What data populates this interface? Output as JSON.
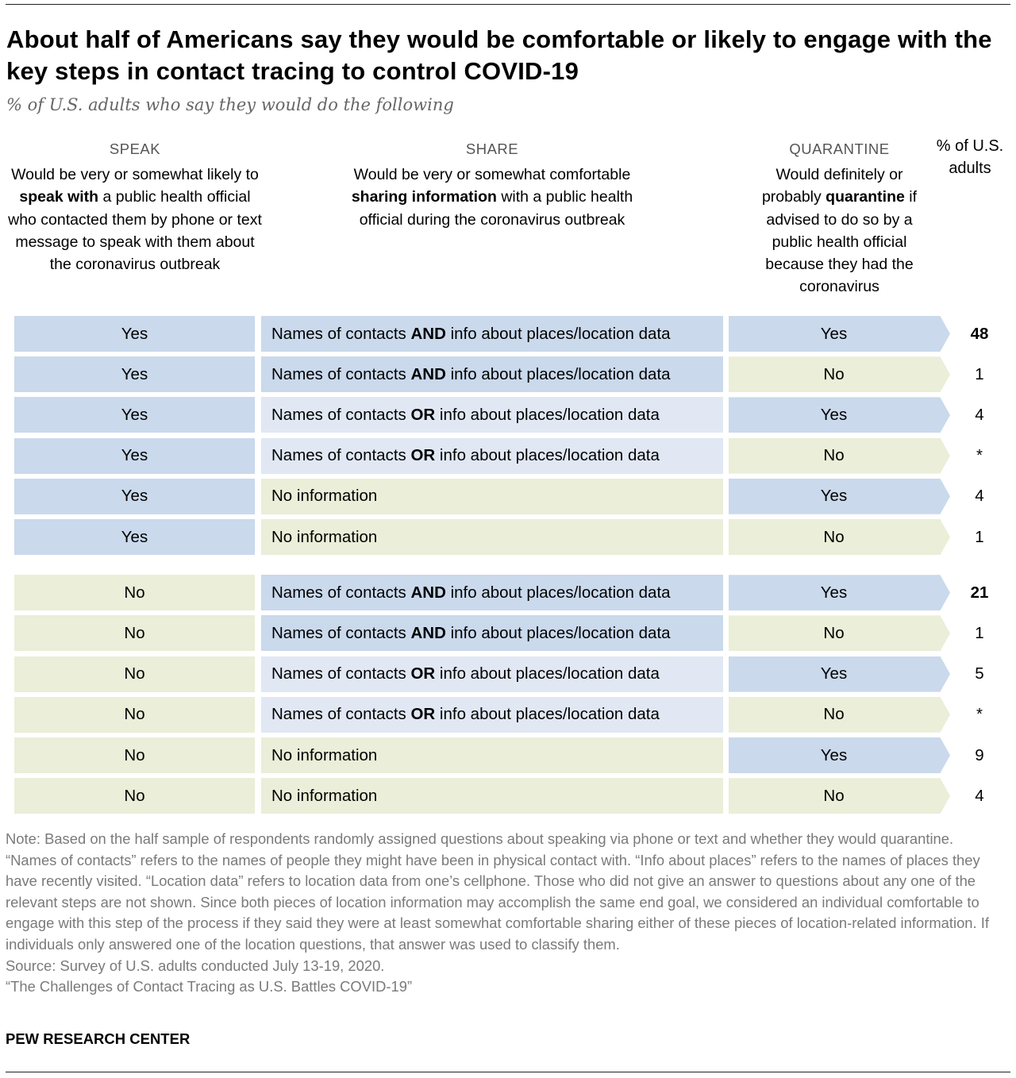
{
  "title": "About half of Americans say they would be comfortable or likely to engage with the key steps in contact tracing to control COVID-19",
  "subtitle": "% of U.S. adults who say they would do the following",
  "columns": {
    "speak": {
      "cap": "SPEAK",
      "pre": "Would be very or somewhat likely to ",
      "bold": "speak with",
      "post": " a public health official who contacted them by phone or text message to speak with them about the coronavirus outbreak"
    },
    "share": {
      "cap": "SHARE",
      "pre": "Would be very or somewhat comfortable ",
      "bold": "sharing information",
      "post": " with a public health official during the coronavirus outbreak"
    },
    "quarantine": {
      "cap": "QUARANTINE",
      "pre": "Would definitely or probably ",
      "bold": "quarantine",
      "post": " if advised to do so by a public health official because they had the coronavirus"
    },
    "pct": "% of U.S. adults"
  },
  "colors": {
    "yes": "#cad9ec",
    "no": "#ebeed8",
    "or": "#e1e8f4"
  },
  "chart_data": {
    "type": "table",
    "rows": [
      {
        "speak": "Yes",
        "share": {
          "type": "and",
          "pre": "Names of contacts ",
          "bold": "AND",
          "post": " info about places/location data"
        },
        "quarantine": "Yes",
        "value": "48",
        "bold": true
      },
      {
        "speak": "Yes",
        "share": {
          "type": "and",
          "pre": "Names of contacts ",
          "bold": "AND",
          "post": " info about places/location data"
        },
        "quarantine": "No",
        "value": "1"
      },
      {
        "speak": "Yes",
        "share": {
          "type": "or",
          "pre": "Names of contacts ",
          "bold": "OR",
          "post": " info about places/location data"
        },
        "quarantine": "Yes",
        "value": "4"
      },
      {
        "speak": "Yes",
        "share": {
          "type": "or",
          "pre": "Names of contacts ",
          "bold": "OR",
          "post": " info about places/location data"
        },
        "quarantine": "No",
        "value": "*"
      },
      {
        "speak": "Yes",
        "share": {
          "type": "none",
          "pre": "No information",
          "bold": "",
          "post": ""
        },
        "quarantine": "Yes",
        "value": "4"
      },
      {
        "speak": "Yes",
        "share": {
          "type": "none",
          "pre": "No information",
          "bold": "",
          "post": ""
        },
        "quarantine": "No",
        "value": "1"
      },
      {
        "speak": "No",
        "share": {
          "type": "and",
          "pre": "Names of contacts ",
          "bold": "AND",
          "post": " info about places/location data"
        },
        "quarantine": "Yes",
        "value": "21",
        "bold": true
      },
      {
        "speak": "No",
        "share": {
          "type": "and",
          "pre": "Names of contacts ",
          "bold": "AND",
          "post": " info about places/location data"
        },
        "quarantine": "No",
        "value": "1"
      },
      {
        "speak": "No",
        "share": {
          "type": "or",
          "pre": "Names of contacts ",
          "bold": "OR",
          "post": " info about places/location data"
        },
        "quarantine": "Yes",
        "value": "5"
      },
      {
        "speak": "No",
        "share": {
          "type": "or",
          "pre": "Names of contacts ",
          "bold": "OR",
          "post": " info about places/location data"
        },
        "quarantine": "No",
        "value": "*"
      },
      {
        "speak": "No",
        "share": {
          "type": "none",
          "pre": "No information",
          "bold": "",
          "post": ""
        },
        "quarantine": "Yes",
        "value": "9"
      },
      {
        "speak": "No",
        "share": {
          "type": "none",
          "pre": "No information",
          "bold": "",
          "post": ""
        },
        "quarantine": "No",
        "value": "4"
      }
    ]
  },
  "note": "Note: Based on the half sample of respondents randomly assigned questions about speaking via phone or text and whether they would quarantine. “Names of contacts” refers to the names of people they might have been in physical contact with. “Info about places” refers to the names of places they have recently visited. “Location data” refers to location data from one’s cellphone. Those who did not give an answer to questions about any one of the relevant steps are not shown. Since both pieces of location information may accomplish the same end goal, we considered an individual comfortable to engage with this step of the process if they said they were at least somewhat comfortable sharing either of these pieces of location-related information. If individuals only answered one of the location questions, that answer was used to classify them.",
  "source": "Source: Survey of U.S. adults conducted July 13-19, 2020.",
  "report": "“The Challenges of Contact Tracing as U.S. Battles COVID-19”",
  "brand": "PEW RESEARCH CENTER"
}
